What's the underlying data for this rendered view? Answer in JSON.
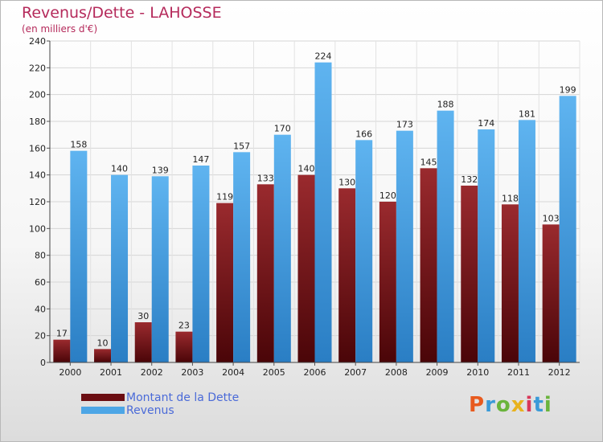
{
  "header": {
    "title": "Revenus/Dette - LAHOSSE",
    "subtitle": "(en milliers d'€)"
  },
  "legend": {
    "items": [
      {
        "label": "Montant de la Dette",
        "color": "#6b0d12"
      },
      {
        "label": "Revenus",
        "color": "#4da6e6"
      }
    ]
  },
  "logo": {
    "text": "Proxiti",
    "letter_colors": [
      "#e85a1e",
      "#3a9ad8",
      "#6ab43c",
      "#e8b21e",
      "#d8385a",
      "#3a9ad8",
      "#6ab43c"
    ]
  },
  "chart_data": {
    "type": "bar",
    "title": "Revenus/Dette - LAHOSSE",
    "ylabel": "",
    "xlabel": "",
    "categories": [
      "2000",
      "2001",
      "2002",
      "2003",
      "2004",
      "2005",
      "2006",
      "2007",
      "2008",
      "2009",
      "2010",
      "2011",
      "2012"
    ],
    "series": [
      {
        "name": "Montant de la Dette",
        "color": "#6b0d12",
        "values": [
          17,
          10,
          30,
          23,
          119,
          133,
          140,
          130,
          120,
          145,
          132,
          118,
          103
        ]
      },
      {
        "name": "Revenus",
        "color": "#4da6e6",
        "values": [
          158,
          140,
          139,
          147,
          157,
          170,
          224,
          166,
          173,
          188,
          174,
          181,
          199
        ]
      }
    ],
    "ylim": [
      0,
      240
    ],
    "yticks": [
      0,
      20,
      40,
      60,
      80,
      100,
      120,
      140,
      160,
      180,
      200,
      220,
      240
    ],
    "grid": true,
    "legend_position": "bottom-left"
  }
}
